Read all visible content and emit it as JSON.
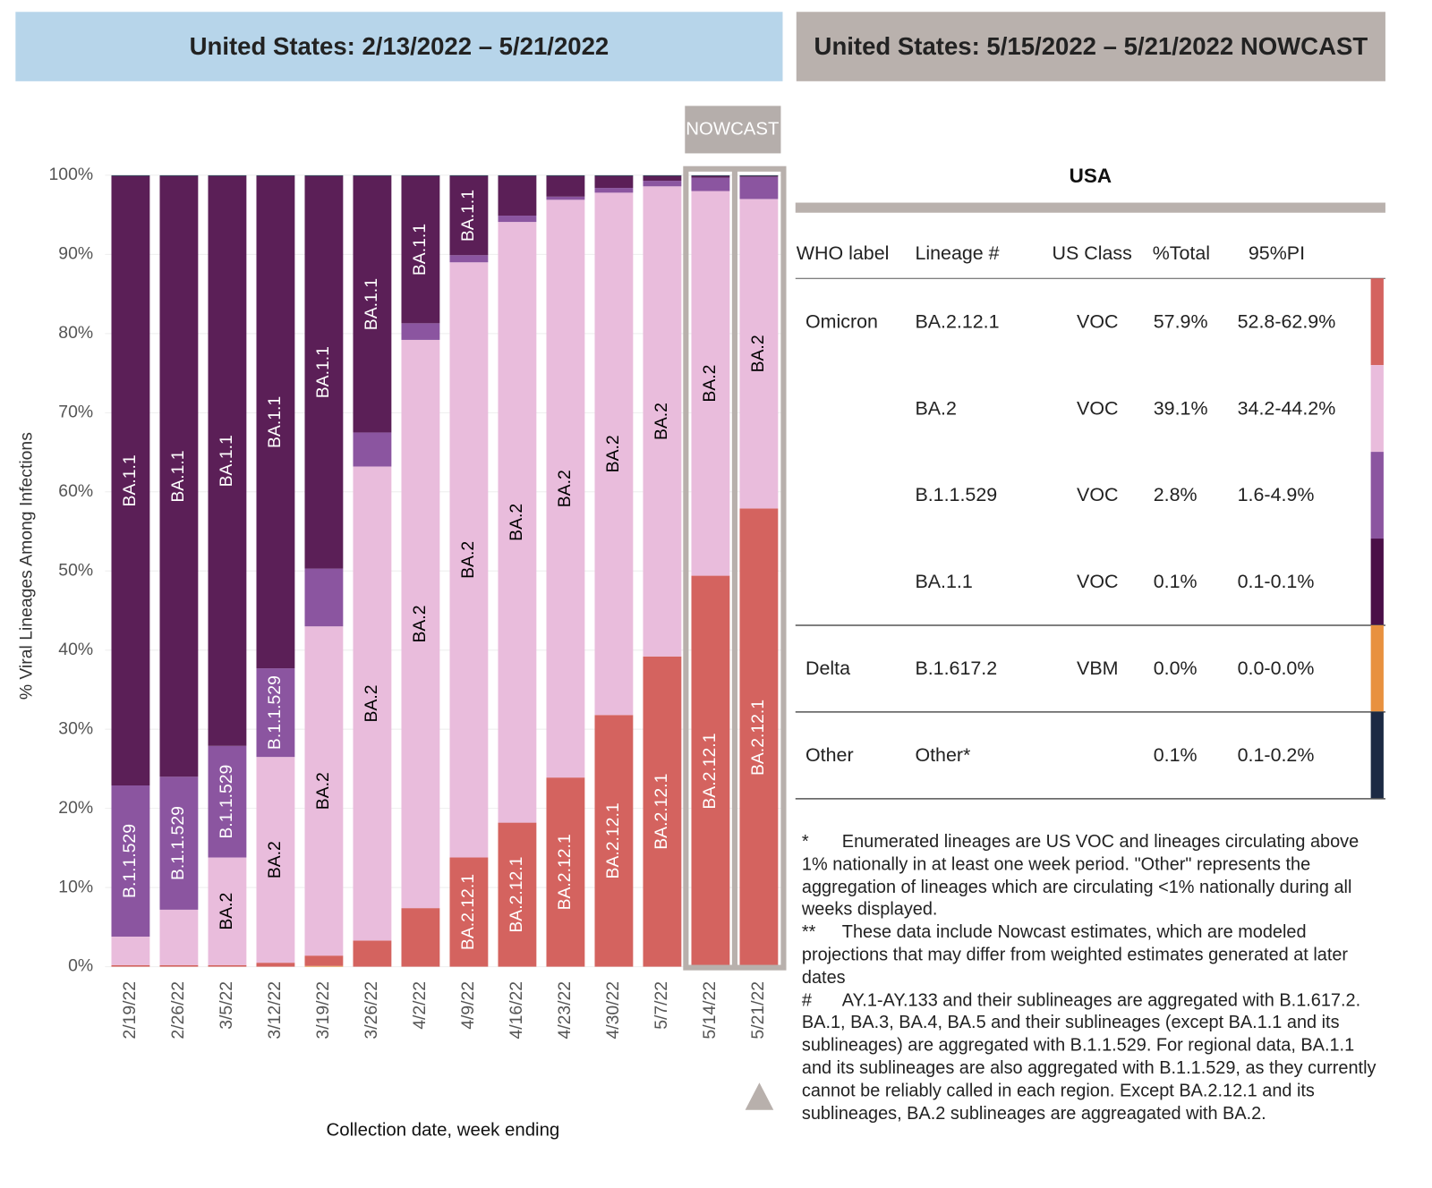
{
  "header": {
    "left_title": "United States: 2/13/2022 – 5/21/2022",
    "right_title": "United States: 5/15/2022 – 5/21/2022 NOWCAST"
  },
  "chart_data": {
    "type": "stacked_bar",
    "nowcast_label": "NOWCAST",
    "x_label": "Collection date, week ending",
    "y_label": "% Viral Lineages Among Infections",
    "categories": [
      "2/19/22",
      "2/26/22",
      "3/5/22",
      "3/12/22",
      "3/19/22",
      "3/26/22",
      "4/2/22",
      "4/9/22",
      "4/16/22",
      "4/23/22",
      "4/30/22",
      "5/7/22",
      "5/14/22",
      "5/21/22"
    ],
    "nowcast_count": 2,
    "series": [
      {
        "color": "#e8913f",
        "values": [
          0,
          0,
          0,
          0,
          0.1,
          0,
          0,
          0,
          0,
          0,
          0,
          0,
          0,
          0
        ]
      },
      {
        "name": "BA.2.12.1",
        "color": "#d4635f",
        "label_color": "#ffffff",
        "values": [
          0.2,
          0.2,
          0.2,
          0.5,
          1.3,
          3.3,
          7.4,
          13.8,
          18.2,
          23.9,
          31.8,
          39.2,
          49.4,
          57.9
        ]
      },
      {
        "name": "BA.2",
        "color": "#e9bcdc",
        "label_color": "#000000",
        "values": [
          3.6,
          7.0,
          13.6,
          26.0,
          41.6,
          59.9,
          71.8,
          75.2,
          75.9,
          73.0,
          66.0,
          59.4,
          48.6,
          39.1
        ]
      },
      {
        "name": "B.1.1.529",
        "color": "#8b55a0",
        "label_color": "#ffffff",
        "values": [
          19.1,
          16.8,
          14.1,
          11.2,
          7.3,
          4.3,
          2.1,
          0.9,
          0.8,
          0.4,
          0.6,
          0.7,
          1.7,
          2.8
        ]
      },
      {
        "name": "BA.1.1",
        "color": "#5b1f57",
        "label_color": "#ffffff",
        "values": [
          77.0,
          75.9,
          72.0,
          62.2,
          49.6,
          32.4,
          18.6,
          10.0,
          5.0,
          2.6,
          1.5,
          0.6,
          0.2,
          0.1
        ]
      },
      {
        "color": "#1c2a44",
        "values": [
          0.1,
          0.1,
          0.1,
          0.1,
          0.1,
          0.1,
          0.1,
          0.1,
          0.1,
          0.1,
          0.1,
          0.1,
          0.1,
          0.1
        ]
      }
    ],
    "ylim": [
      0,
      100
    ],
    "yticks": [
      {
        "value": 0,
        "label": "0%"
      },
      {
        "value": 10,
        "label": "10%"
      },
      {
        "value": 20,
        "label": "20%"
      },
      {
        "value": 30,
        "label": "30%"
      },
      {
        "value": 40,
        "label": "40%"
      },
      {
        "value": 50,
        "label": "50%"
      },
      {
        "value": 60,
        "label": "60%"
      },
      {
        "value": 70,
        "label": "70%"
      },
      {
        "value": 80,
        "label": "80%"
      },
      {
        "value": 90,
        "label": "90%"
      },
      {
        "value": 100,
        "label": "100%"
      }
    ],
    "grid": true
  },
  "table": {
    "title": "USA",
    "columns": [
      "WHO label",
      "Lineage #",
      "US Class",
      "%Total",
      "95%PI"
    ],
    "rows": [
      [
        "Omicron",
        "BA.2.12.1",
        "VOC",
        "57.9%",
        "52.8-62.9%"
      ],
      [
        null,
        "BA.2",
        "VOC",
        "39.1%",
        "34.2-44.2%"
      ],
      [
        null,
        "B.1.1.529",
        "VOC",
        "2.8%",
        "1.6-4.9%"
      ],
      [
        null,
        "BA.1.1",
        "VOC",
        "0.1%",
        "0.1-0.1%"
      ],
      [
        "Delta",
        "B.1.617.2",
        "VBM",
        "0.0%",
        "0.0-0.0%"
      ],
      [
        "Other",
        "Other*",
        null,
        "0.1%",
        "0.1-0.2%"
      ]
    ],
    "row_colors": [
      "#d4635f",
      "#e9bcdc",
      "#8b55a0",
      "#4a0f47",
      "#e8913f",
      "#1c2a44"
    ]
  },
  "footnotes": [
    {
      "symbol": "*",
      "text": "Enumerated lineages are US VOC and lineages circulating above 1% nationally in at least one week period. \"Other\" represents the aggregation of lineages which are circulating <1% nationally during all weeks displayed."
    },
    {
      "symbol": "**",
      "text": "These data include Nowcast estimates, which are modeled projections that may differ from weighted estimates generated at later dates"
    },
    {
      "symbol": "#",
      "text": "AY.1-AY.133 and their sublineages are aggregated with B.1.617.2. BA.1, BA.3, BA.4, BA.5 and their sublineages (except BA.1.1 and its sublineages) are aggregated with B.1.1.529. For regional data, BA.1.1 and its sublineages are also aggregated with B.1.1.529, as they currently cannot be reliably called in each region. Except BA.2.12.1 and its sublineages, BA.2 sublineages are aggreagated with BA.2."
    }
  ]
}
